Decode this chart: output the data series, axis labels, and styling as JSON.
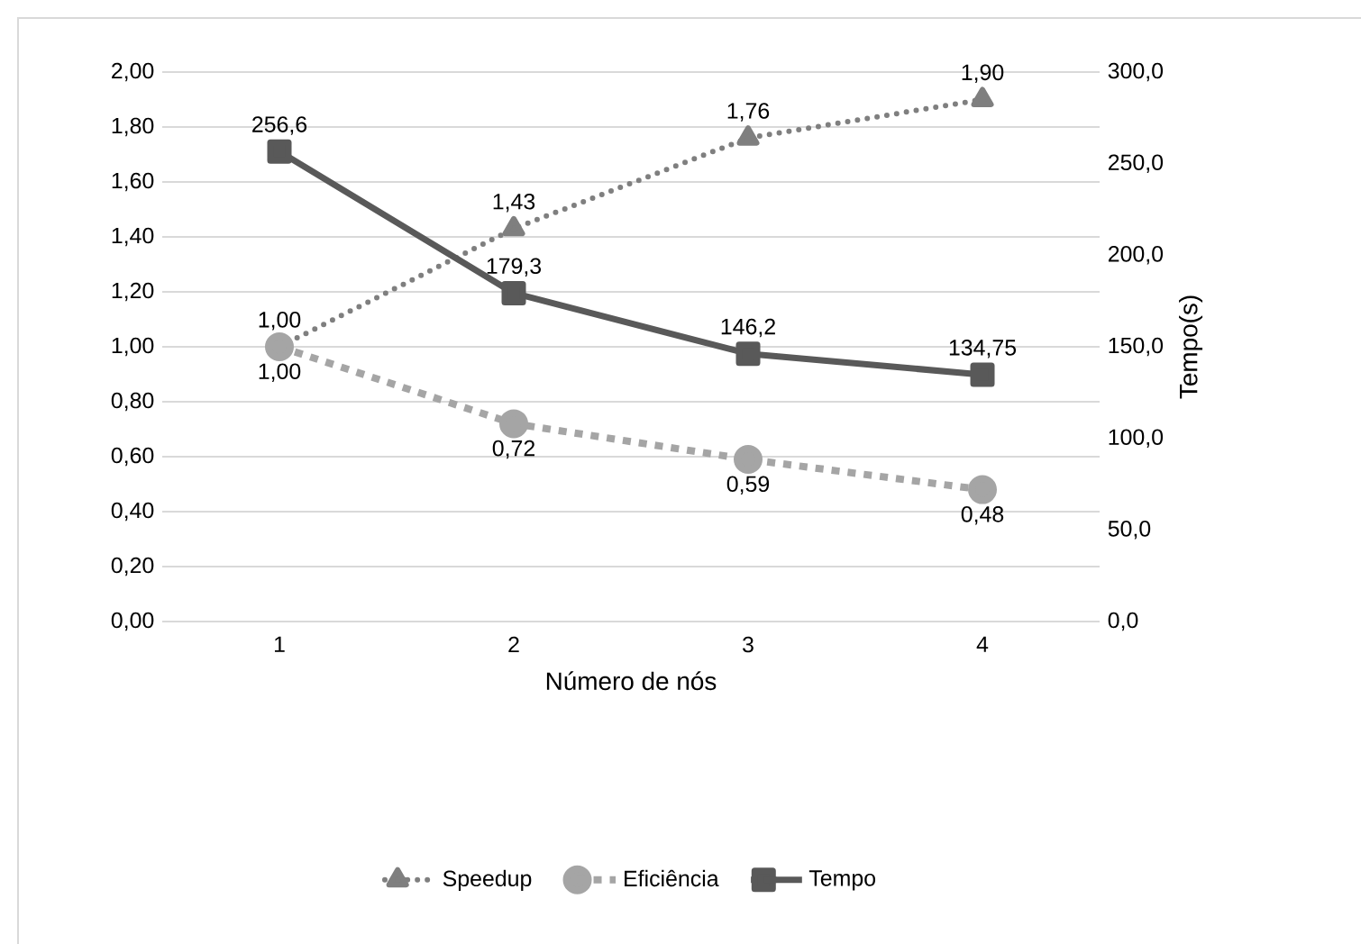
{
  "chart_data": {
    "type": "line",
    "xlabel": "Número de nós",
    "y2label": "Tempo(s)",
    "categories": [
      "1",
      "2",
      "3",
      "4"
    ],
    "series": [
      {
        "name": "Speedup",
        "color": "#7f7f7f",
        "values": [
          1.0,
          1.43,
          1.76,
          1.9
        ],
        "marker": "triangle",
        "line_style": "dotted",
        "value_labels": [
          "1,00",
          "1,43",
          "1,76",
          "1,90"
        ]
      },
      {
        "name": "Eficiência",
        "color": "#a5a5a5",
        "values": [
          1.0,
          0.72,
          0.59,
          0.48
        ],
        "marker": "circle",
        "line_style": "dashed",
        "value_labels": [
          "1,00",
          "0,72",
          "0,59",
          "0,48"
        ]
      },
      {
        "name": "Tempo",
        "color": "#595959",
        "values": [
          256.6,
          179.3,
          146.2,
          134.75
        ],
        "marker": "square",
        "line_style": "solid",
        "axis": "y2",
        "value_labels": [
          "256,6",
          "179,3",
          "146,2",
          "134,75"
        ]
      }
    ],
    "ylim": [
      0,
      2
    ],
    "yticks": [
      {
        "value": 0,
        "label": "0,00"
      },
      {
        "value": 0.2,
        "label": "0,20"
      },
      {
        "value": 0.4,
        "label": "0,40"
      },
      {
        "value": 0.6,
        "label": "0,60"
      },
      {
        "value": 0.8,
        "label": "0,80"
      },
      {
        "value": 1.0,
        "label": "1,00"
      },
      {
        "value": 1.2,
        "label": "1,20"
      },
      {
        "value": 1.4,
        "label": "1,40"
      },
      {
        "value": 1.6,
        "label": "1,60"
      },
      {
        "value": 1.8,
        "label": "1,80"
      },
      {
        "value": 2.0,
        "label": "2,00"
      }
    ],
    "y2lim": [
      0,
      300
    ],
    "y2ticks": [
      {
        "value": 0,
        "label": "0,0"
      },
      {
        "value": 50,
        "label": "50,0"
      },
      {
        "value": 100,
        "label": "100,0"
      },
      {
        "value": 150,
        "label": "150,0"
      },
      {
        "value": 200,
        "label": "200,0"
      },
      {
        "value": 250,
        "label": "250,0"
      },
      {
        "value": 300,
        "label": "300,0"
      }
    ],
    "grid": "y",
    "legend": "bottom"
  }
}
